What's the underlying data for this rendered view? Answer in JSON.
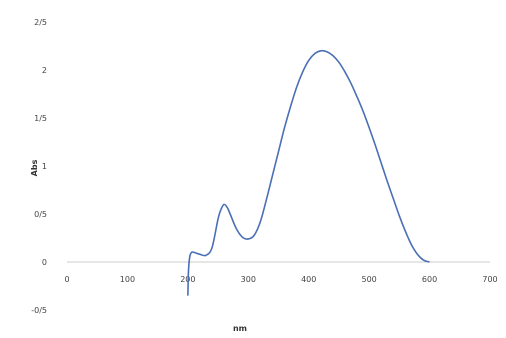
{
  "chart_data": {
    "type": "line",
    "title": "",
    "xlabel": "nm",
    "ylabel": "Abs",
    "xlim": [
      0,
      700
    ],
    "ylim": [
      -0.5,
      2.5
    ],
    "x_ticks": [
      0,
      100,
      200,
      300,
      400,
      500,
      600,
      700
    ],
    "x_tick_labels": [
      "0",
      "100",
      "200",
      "300",
      "400",
      "500",
      "600",
      "700"
    ],
    "y_ticks": [
      -0.5,
      0,
      0.5,
      1,
      1.5,
      2,
      2.5
    ],
    "y_tick_labels": [
      "-0/5",
      "0",
      "0/5",
      "1",
      "1/5",
      "2",
      "2/5"
    ],
    "grid": false,
    "legend": "none",
    "line_color": "#4a6fb5",
    "series": [
      {
        "name": "",
        "x": [
          200,
          201,
          203,
          206,
          210,
          220,
          230,
          240,
          250,
          255,
          260,
          265,
          270,
          280,
          290,
          300,
          310,
          320,
          330,
          340,
          350,
          360,
          370,
          380,
          390,
          400,
          410,
          420,
          430,
          440,
          450,
          460,
          470,
          480,
          490,
          500,
          510,
          520,
          530,
          540,
          550,
          560,
          570,
          580,
          590,
          600
        ],
        "y": [
          -0.35,
          -0.1,
          0.05,
          0.1,
          0.1,
          0.08,
          0.07,
          0.15,
          0.45,
          0.55,
          0.6,
          0.57,
          0.5,
          0.35,
          0.26,
          0.24,
          0.28,
          0.42,
          0.65,
          0.9,
          1.15,
          1.4,
          1.62,
          1.82,
          1.98,
          2.1,
          2.17,
          2.2,
          2.19,
          2.15,
          2.08,
          1.98,
          1.86,
          1.72,
          1.57,
          1.4,
          1.22,
          1.03,
          0.84,
          0.66,
          0.48,
          0.32,
          0.18,
          0.08,
          0.02,
          0.0
        ]
      }
    ]
  }
}
